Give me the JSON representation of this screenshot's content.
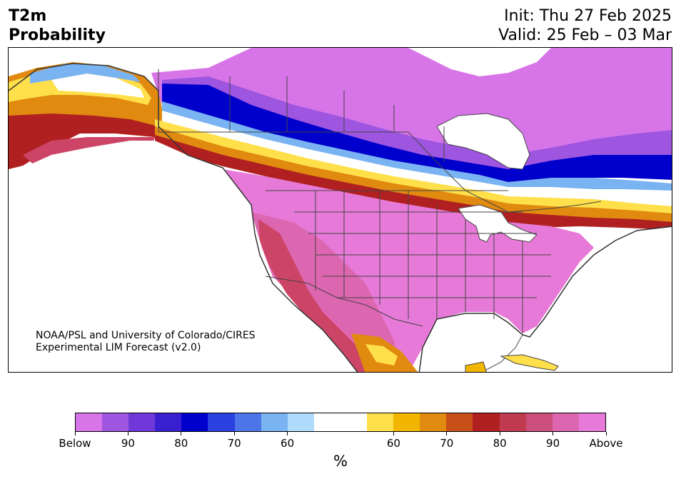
{
  "header": {
    "title_line1": "T2m",
    "title_line2": "Probability",
    "init_text": "Init: Thu 27 Feb 2025",
    "valid_text": "Valid: 25 Feb – 03 Mar"
  },
  "map": {
    "region": "North America",
    "credit_line1": "NOAA/PSL and University of Colorado/CIRES",
    "credit_line2": "Experimental LIM Forecast (v2.0)",
    "field_colors": {
      "below_high": "#d775e8",
      "below_mid": "#9e55e0",
      "below_strong": "#2020c8",
      "below_light": "#7ab3f2",
      "near_normal": "#ffffff",
      "above_light": "#ffe04a",
      "above_orange": "#e08a10",
      "above_red": "#b02020",
      "above_rose": "#cc4466",
      "above_pink": "#dd66b0",
      "above_high": "#e77ad8"
    }
  },
  "colorbar": {
    "colors": [
      "#d775e8",
      "#9e55e0",
      "#7038d8",
      "#3a1fd0",
      "#0000cc",
      "#2a40e0",
      "#4e75e8",
      "#7ab3f2",
      "#afdcfc",
      "#ffffff",
      "#ffffff",
      "#ffe04a",
      "#f2b600",
      "#e08a10",
      "#c85018",
      "#b02020",
      "#c03a50",
      "#cc4e7a",
      "#dd66b0",
      "#e77ad8"
    ],
    "labels": [
      "Below",
      "90",
      "80",
      "70",
      "60",
      "60",
      "70",
      "80",
      "90",
      "Above"
    ],
    "unit": "%"
  }
}
